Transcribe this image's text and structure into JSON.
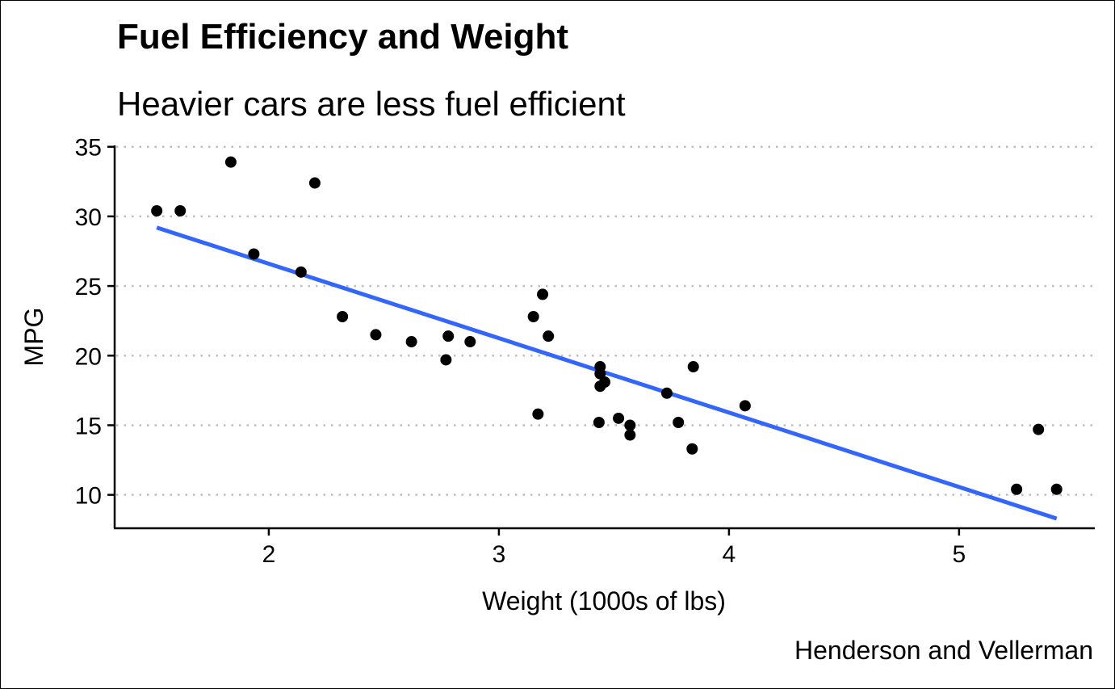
{
  "chart_data": {
    "type": "scatter",
    "title": "Fuel Efficiency and Weight",
    "subtitle": "Heavier cars are less fuel efficient",
    "caption": "Henderson and Vellerman",
    "xlabel": "Weight (1000s of lbs)",
    "ylabel": "MPG",
    "xlim": [
      1.33,
      5.59
    ],
    "ylim": [
      7.6,
      35.1
    ],
    "xticks": [
      2,
      3,
      4,
      5
    ],
    "yticks": [
      10,
      15,
      20,
      25,
      30,
      35
    ],
    "grid": "horizontal dotted",
    "points": [
      {
        "x": 2.62,
        "y": 21.0
      },
      {
        "x": 2.875,
        "y": 21.0
      },
      {
        "x": 2.32,
        "y": 22.8
      },
      {
        "x": 3.215,
        "y": 21.4
      },
      {
        "x": 3.44,
        "y": 18.7
      },
      {
        "x": 3.46,
        "y": 18.1
      },
      {
        "x": 3.57,
        "y": 14.3
      },
      {
        "x": 3.19,
        "y": 24.4
      },
      {
        "x": 3.15,
        "y": 22.8
      },
      {
        "x": 3.44,
        "y": 19.2
      },
      {
        "x": 3.44,
        "y": 17.8
      },
      {
        "x": 4.07,
        "y": 16.4
      },
      {
        "x": 3.73,
        "y": 17.3
      },
      {
        "x": 3.78,
        "y": 15.2
      },
      {
        "x": 5.25,
        "y": 10.4
      },
      {
        "x": 5.424,
        "y": 10.4
      },
      {
        "x": 5.345,
        "y": 14.7
      },
      {
        "x": 2.2,
        "y": 32.4
      },
      {
        "x": 1.615,
        "y": 30.4
      },
      {
        "x": 1.835,
        "y": 33.9
      },
      {
        "x": 2.465,
        "y": 21.5
      },
      {
        "x": 3.52,
        "y": 15.5
      },
      {
        "x": 3.435,
        "y": 15.2
      },
      {
        "x": 3.84,
        "y": 13.3
      },
      {
        "x": 3.845,
        "y": 19.2
      },
      {
        "x": 1.935,
        "y": 27.3
      },
      {
        "x": 2.14,
        "y": 26.0
      },
      {
        "x": 1.513,
        "y": 30.4
      },
      {
        "x": 3.17,
        "y": 15.8
      },
      {
        "x": 2.77,
        "y": 19.7
      },
      {
        "x": 3.57,
        "y": 15.0
      },
      {
        "x": 2.78,
        "y": 21.4
      }
    ],
    "trend_line": {
      "type": "linear",
      "intercept": 37.285,
      "slope": -5.344,
      "x_range": [
        1.513,
        5.424
      ]
    },
    "colors": {
      "points": "#000000",
      "trend_line": "#3366FF",
      "grid": "#bebebe",
      "axis": "#000000"
    }
  }
}
